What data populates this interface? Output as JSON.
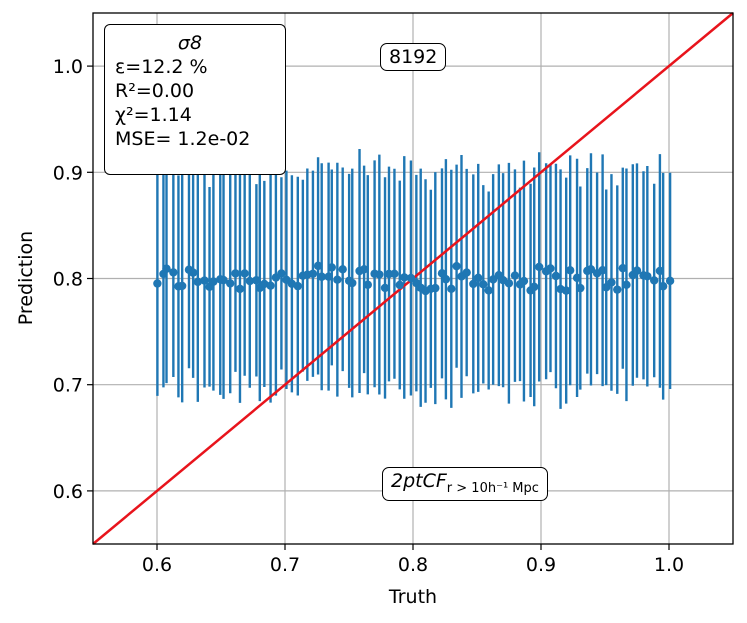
{
  "chart_data": {
    "type": "scatter",
    "title": "",
    "xlabel": "Truth",
    "ylabel": "Prediction",
    "xlim": [
      0.55,
      1.05
    ],
    "ylim": [
      0.55,
      1.05
    ],
    "xticks": [
      "0.6",
      "0.7",
      "0.8",
      "0.9",
      "1.0"
    ],
    "yticks": [
      "0.6",
      "0.7",
      "0.8",
      "0.9",
      "1.0"
    ],
    "grid": true,
    "series": [
      {
        "name": "predictions",
        "style": "errorbar",
        "color": "#1f77b4",
        "n_points": 100,
        "x_range": [
          0.6,
          1.0
        ],
        "y_center": 0.8,
        "y_spread": 0.012,
        "error_halfwidth_range": [
          0.09,
          0.115
        ]
      },
      {
        "name": "identity",
        "style": "line",
        "color": "#e8141c",
        "x": [
          0.55,
          1.05
        ],
        "y": [
          0.55,
          1.05
        ]
      }
    ],
    "stats": {
      "title": "σ8",
      "epsilon": "ε=12.2 %",
      "r2": "R²=0.00",
      "chi2": "χ²=1.14",
      "mse": "MSE= 1.2e-02"
    },
    "annotations": {
      "sample_size": "8192",
      "feature_main": "2ptCF",
      "feature_sub": "r > 10h⁻¹ Mpc"
    }
  }
}
